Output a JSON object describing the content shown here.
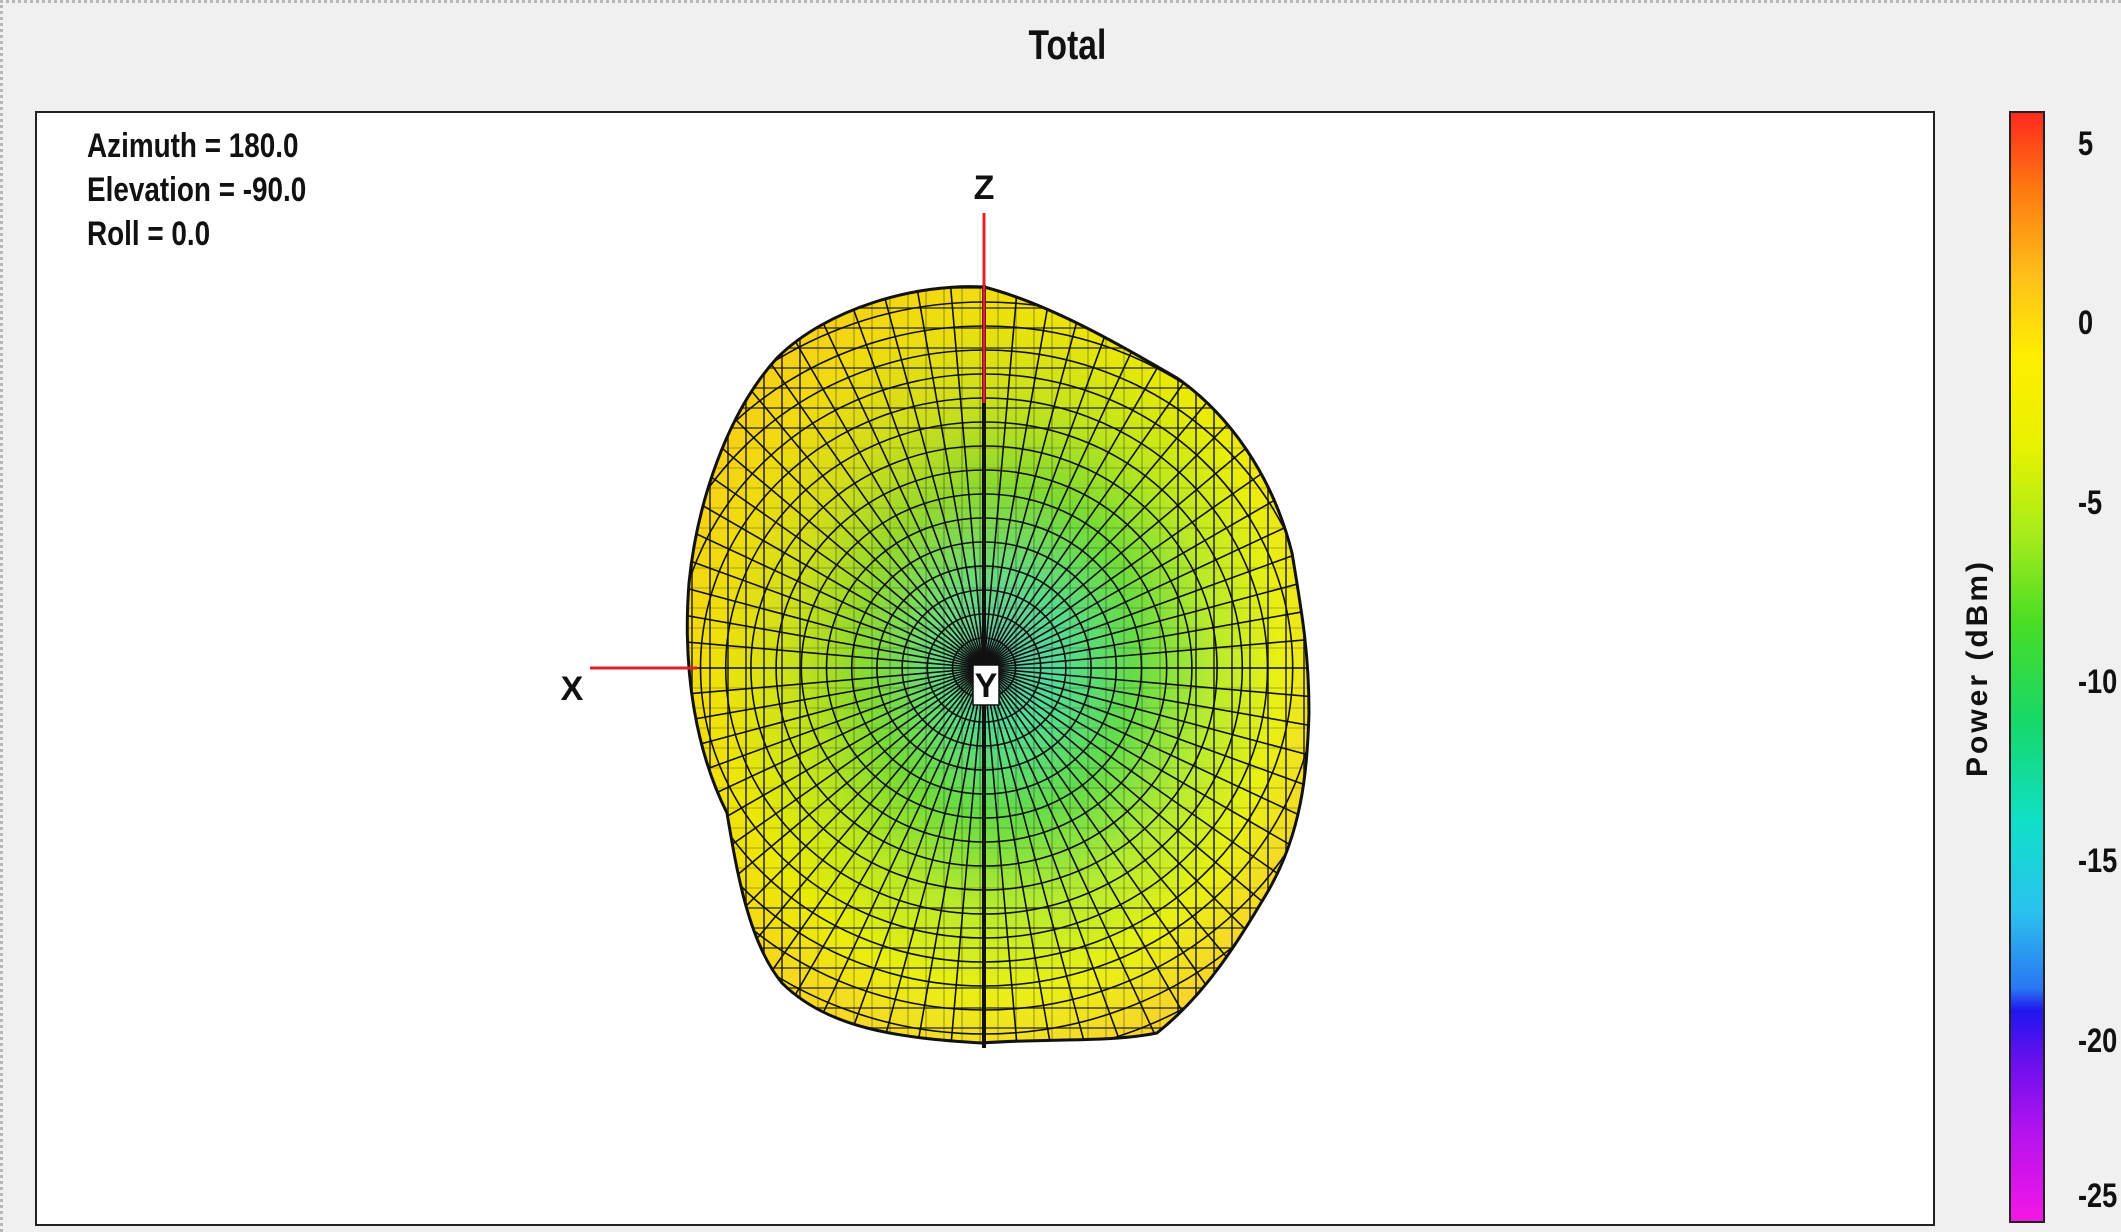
{
  "chart_data": {
    "type": "3d-radiation-pattern",
    "title": "Total",
    "view": {
      "azimuth_text": "Azimuth = 180.0",
      "elevation_text": "Elevation = -90.0",
      "roll_text": "Roll = 0.0"
    },
    "axes": {
      "x": "X",
      "y": "Y",
      "z": "Z"
    },
    "colorbar": {
      "label": "Power (dBm)",
      "ticks": [
        "5",
        "0",
        "-5",
        "-10",
        "-15",
        "-20",
        "-25"
      ],
      "range": [
        -25,
        6
      ]
    },
    "colors": {
      "axis_line": "#e0202a",
      "mesh_line": "#111111"
    }
  }
}
